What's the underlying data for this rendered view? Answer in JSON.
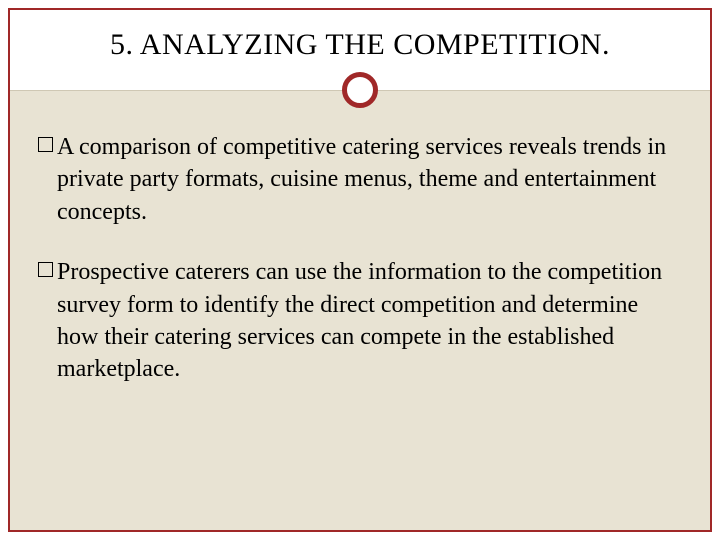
{
  "slide": {
    "title": "5. ANALYZING THE COMPETITION.",
    "bullets": [
      "A comparison of competitive catering services reveals trends in private party formats, cuisine menus, theme and entertainment concepts.",
      "Prospective caterers can use the information to the competition survey form to identify the direct competition and determine how their catering services can compete in the established marketplace."
    ]
  },
  "style": {
    "frame_border_color": "#a02828",
    "content_bg": "#e8e3d3",
    "title_bg": "#ffffff",
    "title_fontsize": 30,
    "body_fontsize": 24,
    "circle_border_width": 5,
    "circle_size": 36,
    "bullet_marker_size": 15,
    "text_color": "#000000",
    "divider_color": "#cfc8b4"
  }
}
